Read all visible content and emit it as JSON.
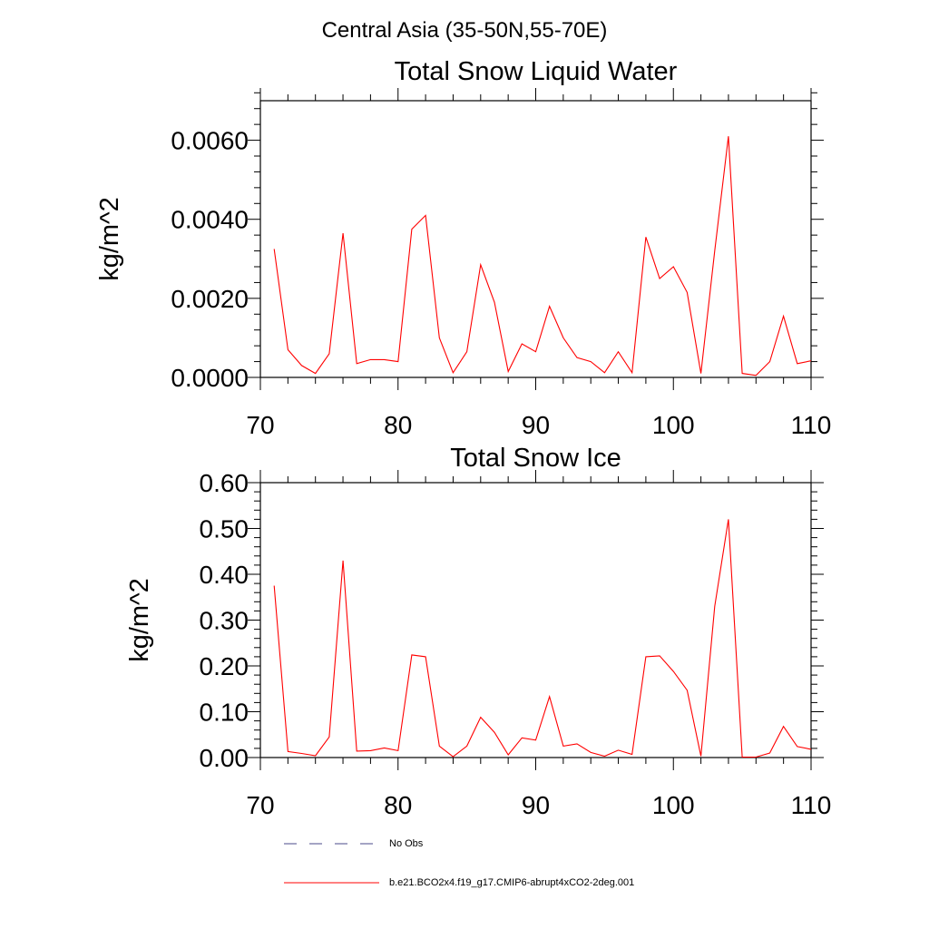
{
  "figure_title": "Central Asia (35-50N,55-70E)",
  "legend": [
    {
      "label": "No Obs",
      "color": "#4a4a8a",
      "dash": "dashed"
    },
    {
      "label": "b.e21.BCO2x4.f19_g17.CMIP6-abrupt4xCO2-2deg.001",
      "color": "#ff0000",
      "dash": "solid"
    }
  ],
  "chart_data": [
    {
      "type": "line",
      "title": "Total Snow Liquid Water",
      "ylabel": "kg/m^2",
      "xlabel": "",
      "xlim": [
        70,
        110
      ],
      "ylim": [
        0,
        0.007
      ],
      "xticks": [
        "70",
        "80",
        "90",
        "100",
        "110"
      ],
      "yticks": [
        "0.0000",
        "0.0020",
        "0.0040",
        "0.0060"
      ],
      "ytick_values": [
        0,
        0.002,
        0.004,
        0.006
      ],
      "series": [
        {
          "name": "b.e21.BCO2x4.f19_g17.CMIP6-abrupt4xCO2-2deg.001",
          "color": "#ff0000",
          "x": [
            71,
            72,
            73,
            74,
            75,
            76,
            77,
            78,
            79,
            80,
            81,
            82,
            83,
            84,
            85,
            86,
            87,
            88,
            89,
            90,
            91,
            92,
            93,
            94,
            95,
            96,
            97,
            98,
            99,
            100,
            101,
            102,
            103,
            104,
            105,
            106,
            107,
            108,
            109,
            110
          ],
          "y": [
            0.00325,
            0.0007,
            0.0003,
            0.0001,
            0.0006,
            0.00365,
            0.00035,
            0.00045,
            0.00045,
            0.0004,
            0.00375,
            0.0041,
            0.001,
            0.00012,
            0.00065,
            0.00285,
            0.0019,
            0.00015,
            0.00085,
            0.00065,
            0.0018,
            0.001,
            0.0005,
            0.0004,
            0.00012,
            0.00065,
            0.00012,
            0.00355,
            0.0025,
            0.0028,
            0.00215,
            0.0001,
            0.0032,
            0.0061,
            0.0001,
            5e-05,
            0.0004,
            0.00155,
            0.00035,
            0.00042
          ]
        }
      ]
    },
    {
      "type": "line",
      "title": "Total Snow Ice",
      "ylabel": "kg/m^2",
      "xlabel": "",
      "xlim": [
        70,
        110
      ],
      "ylim": [
        0,
        0.6
      ],
      "xticks": [
        "70",
        "80",
        "90",
        "100",
        "110"
      ],
      "yticks": [
        "0.00",
        "0.10",
        "0.20",
        "0.30",
        "0.40",
        "0.50",
        "0.60"
      ],
      "ytick_values": [
        0,
        0.1,
        0.2,
        0.3,
        0.4,
        0.5,
        0.6
      ],
      "series": [
        {
          "name": "b.e21.BCO2x4.f19_g17.CMIP6-abrupt4xCO2-2deg.001",
          "color": "#ff0000",
          "x": [
            71,
            72,
            73,
            74,
            75,
            76,
            77,
            78,
            79,
            80,
            81,
            82,
            83,
            84,
            85,
            86,
            87,
            88,
            89,
            90,
            91,
            92,
            93,
            94,
            95,
            96,
            97,
            98,
            99,
            100,
            101,
            102,
            103,
            104,
            105,
            106,
            107,
            108,
            109,
            110
          ],
          "y": [
            0.375,
            0.013,
            0.009,
            0.004,
            0.045,
            0.43,
            0.014,
            0.015,
            0.021,
            0.015,
            0.224,
            0.22,
            0.025,
            0.002,
            0.025,
            0.088,
            0.055,
            0.006,
            0.043,
            0.038,
            0.133,
            0.025,
            0.03,
            0.011,
            0.003,
            0.016,
            0.007,
            0.22,
            0.222,
            0.188,
            0.147,
            0.003,
            0.33,
            0.52,
            0.001,
            0.001,
            0.01,
            0.068,
            0.024,
            0.018
          ]
        }
      ]
    }
  ]
}
